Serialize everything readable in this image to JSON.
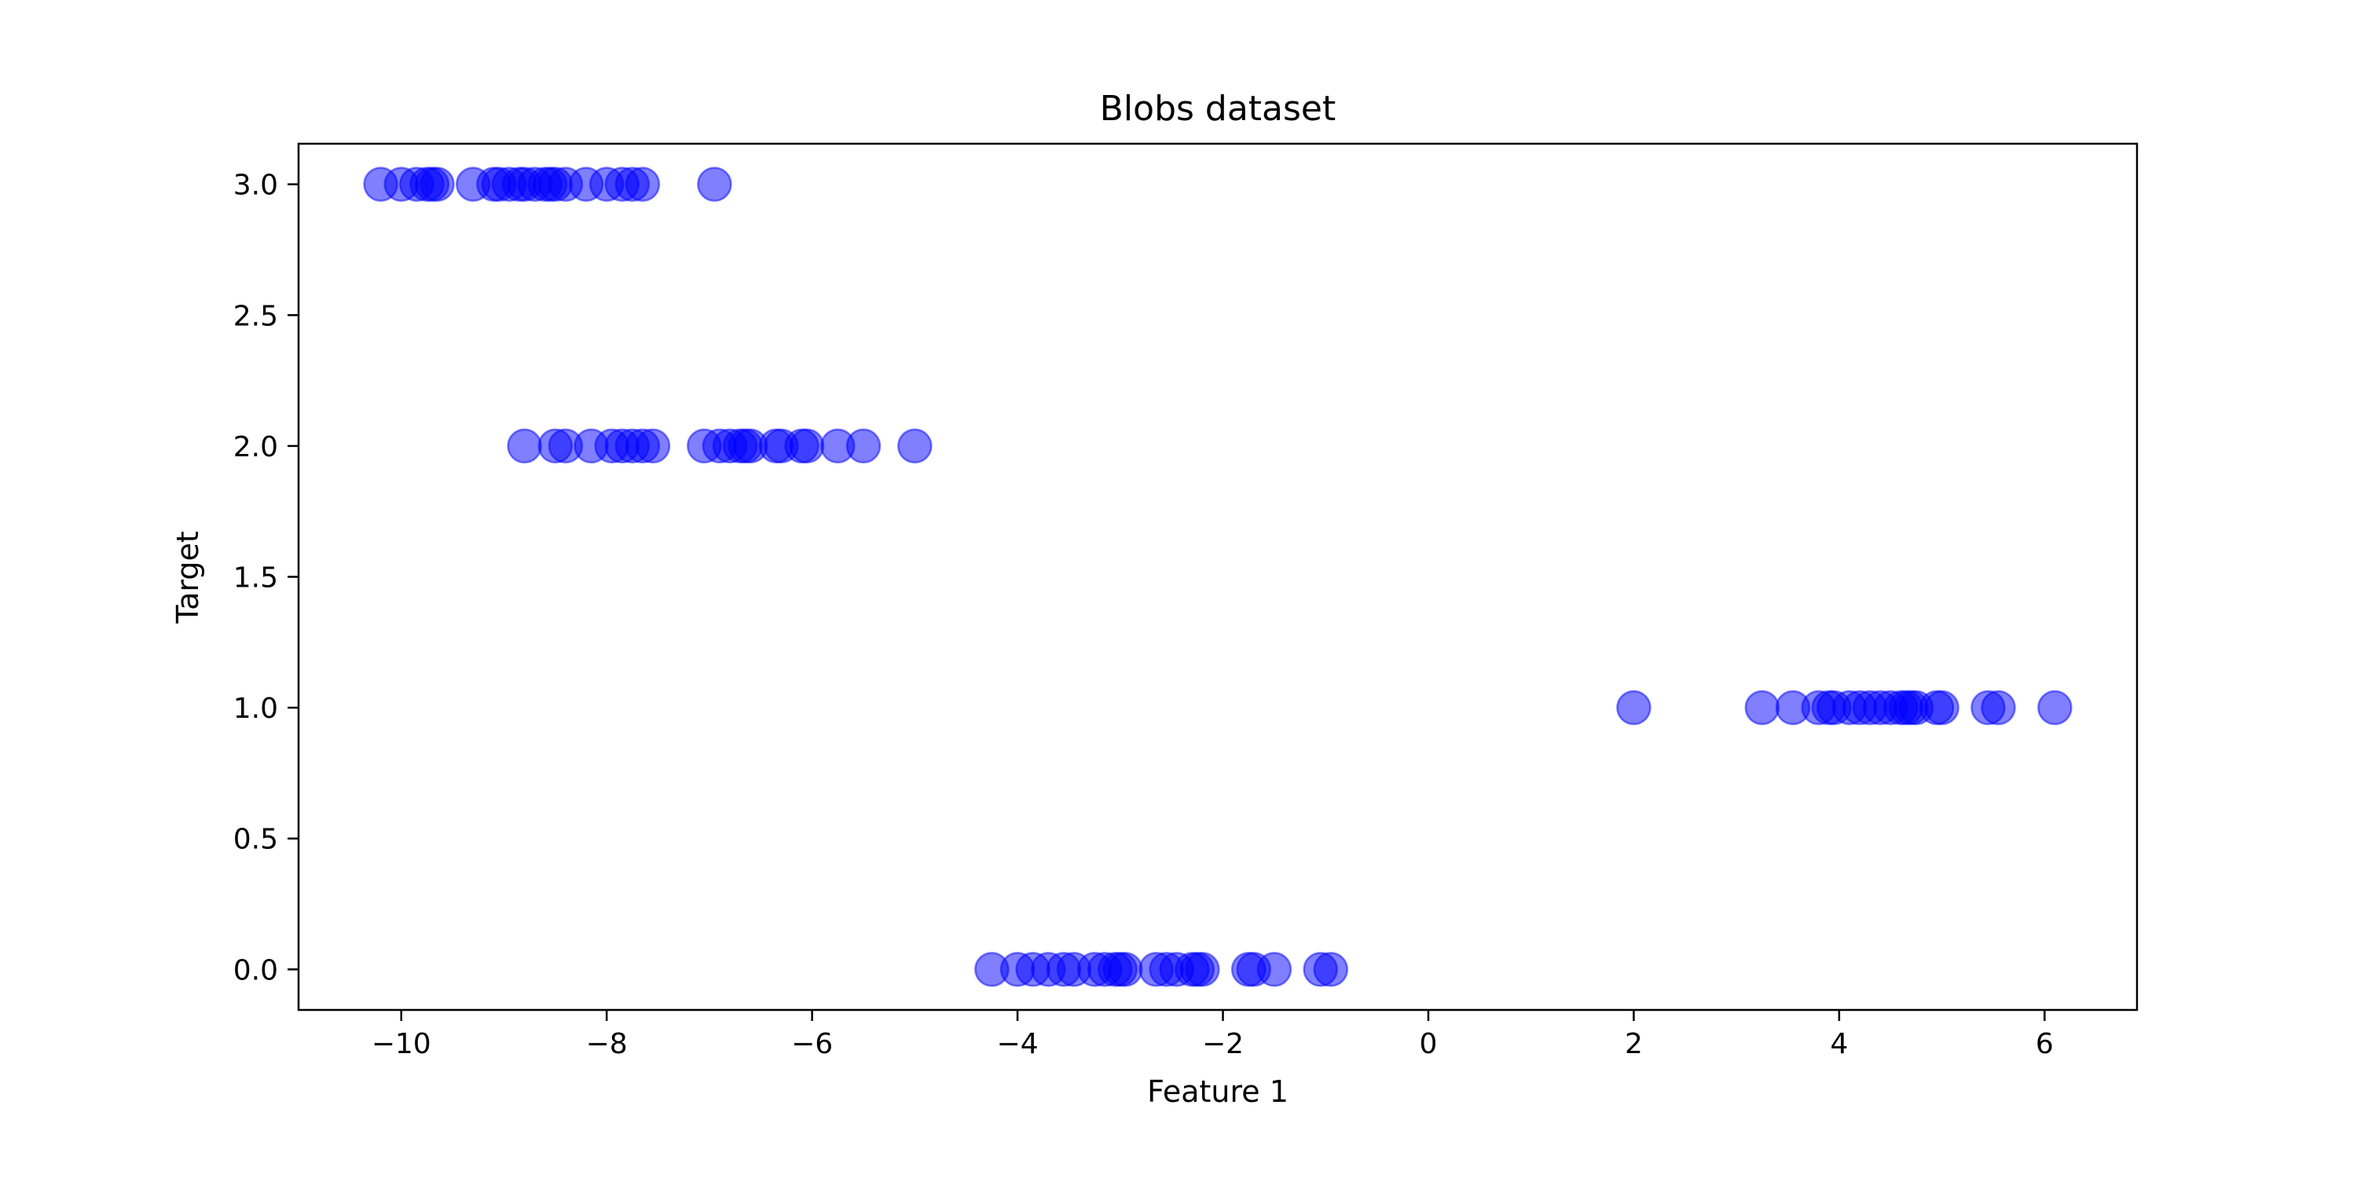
{
  "chart_data": {
    "type": "scatter",
    "title": "Blobs dataset",
    "xlabel": "Feature 1",
    "ylabel": "Target",
    "xlim": [
      -11.0,
      6.9
    ],
    "ylim": [
      -0.155,
      3.155
    ],
    "xticks": [
      -10,
      -8,
      -6,
      -4,
      -2,
      0,
      2,
      4,
      6
    ],
    "xtick_labels": [
      "−10",
      "−8",
      "−6",
      "−4",
      "−2",
      "0",
      "2",
      "4",
      "6"
    ],
    "yticks": [
      0.0,
      0.5,
      1.0,
      1.5,
      2.0,
      2.5,
      3.0
    ],
    "ytick_labels": [
      "0.0",
      "0.5",
      "1.0",
      "1.5",
      "2.0",
      "2.5",
      "3.0"
    ],
    "grid": false,
    "marker_color": "#0000ff",
    "marker_alpha": 0.5,
    "series": [
      {
        "points": [
          {
            "x": -10.2,
            "y": 3
          },
          {
            "x": -10.0,
            "y": 3
          },
          {
            "x": -9.85,
            "y": 3
          },
          {
            "x": -9.75,
            "y": 3
          },
          {
            "x": -9.7,
            "y": 3
          },
          {
            "x": -9.65,
            "y": 3
          },
          {
            "x": -9.3,
            "y": 3
          },
          {
            "x": -9.1,
            "y": 3
          },
          {
            "x": -9.05,
            "y": 3
          },
          {
            "x": -8.95,
            "y": 3
          },
          {
            "x": -8.85,
            "y": 3
          },
          {
            "x": -8.8,
            "y": 3
          },
          {
            "x": -8.7,
            "y": 3
          },
          {
            "x": -8.6,
            "y": 3
          },
          {
            "x": -8.55,
            "y": 3
          },
          {
            "x": -8.5,
            "y": 3
          },
          {
            "x": -8.4,
            "y": 3
          },
          {
            "x": -8.2,
            "y": 3
          },
          {
            "x": -8.0,
            "y": 3
          },
          {
            "x": -7.85,
            "y": 3
          },
          {
            "x": -7.75,
            "y": 3
          },
          {
            "x": -7.65,
            "y": 3
          },
          {
            "x": -6.95,
            "y": 3
          },
          {
            "x": -8.8,
            "y": 2
          },
          {
            "x": -8.5,
            "y": 2
          },
          {
            "x": -8.4,
            "y": 2
          },
          {
            "x": -8.15,
            "y": 2
          },
          {
            "x": -7.95,
            "y": 2
          },
          {
            "x": -7.85,
            "y": 2
          },
          {
            "x": -7.75,
            "y": 2
          },
          {
            "x": -7.65,
            "y": 2
          },
          {
            "x": -7.55,
            "y": 2
          },
          {
            "x": -7.05,
            "y": 2
          },
          {
            "x": -6.9,
            "y": 2
          },
          {
            "x": -6.8,
            "y": 2
          },
          {
            "x": -6.7,
            "y": 2
          },
          {
            "x": -6.65,
            "y": 2
          },
          {
            "x": -6.6,
            "y": 2
          },
          {
            "x": -6.35,
            "y": 2
          },
          {
            "x": -6.3,
            "y": 2
          },
          {
            "x": -6.1,
            "y": 2
          },
          {
            "x": -6.05,
            "y": 2
          },
          {
            "x": -5.75,
            "y": 2
          },
          {
            "x": -5.5,
            "y": 2
          },
          {
            "x": -5.0,
            "y": 2
          },
          {
            "x": 2.0,
            "y": 1
          },
          {
            "x": 3.25,
            "y": 1
          },
          {
            "x": 3.55,
            "y": 1
          },
          {
            "x": 3.8,
            "y": 1
          },
          {
            "x": 3.9,
            "y": 1
          },
          {
            "x": 3.95,
            "y": 1
          },
          {
            "x": 4.1,
            "y": 1
          },
          {
            "x": 4.2,
            "y": 1
          },
          {
            "x": 4.3,
            "y": 1
          },
          {
            "x": 4.4,
            "y": 1
          },
          {
            "x": 4.5,
            "y": 1
          },
          {
            "x": 4.6,
            "y": 1
          },
          {
            "x": 4.65,
            "y": 1
          },
          {
            "x": 4.7,
            "y": 1
          },
          {
            "x": 4.75,
            "y": 1
          },
          {
            "x": 4.95,
            "y": 1
          },
          {
            "x": 5.0,
            "y": 1
          },
          {
            "x": 5.45,
            "y": 1
          },
          {
            "x": 5.55,
            "y": 1
          },
          {
            "x": 6.1,
            "y": 1
          },
          {
            "x": -4.25,
            "y": 0
          },
          {
            "x": -4.0,
            "y": 0
          },
          {
            "x": -3.85,
            "y": 0
          },
          {
            "x": -3.7,
            "y": 0
          },
          {
            "x": -3.55,
            "y": 0
          },
          {
            "x": -3.45,
            "y": 0
          },
          {
            "x": -3.25,
            "y": 0
          },
          {
            "x": -3.15,
            "y": 0
          },
          {
            "x": -3.05,
            "y": 0
          },
          {
            "x": -3.0,
            "y": 0
          },
          {
            "x": -2.95,
            "y": 0
          },
          {
            "x": -2.65,
            "y": 0
          },
          {
            "x": -2.55,
            "y": 0
          },
          {
            "x": -2.45,
            "y": 0
          },
          {
            "x": -2.3,
            "y": 0
          },
          {
            "x": -2.25,
            "y": 0
          },
          {
            "x": -2.2,
            "y": 0
          },
          {
            "x": -1.75,
            "y": 0
          },
          {
            "x": -1.7,
            "y": 0
          },
          {
            "x": -1.5,
            "y": 0
          },
          {
            "x": -1.05,
            "y": 0
          },
          {
            "x": -0.95,
            "y": 0
          }
        ]
      }
    ]
  }
}
